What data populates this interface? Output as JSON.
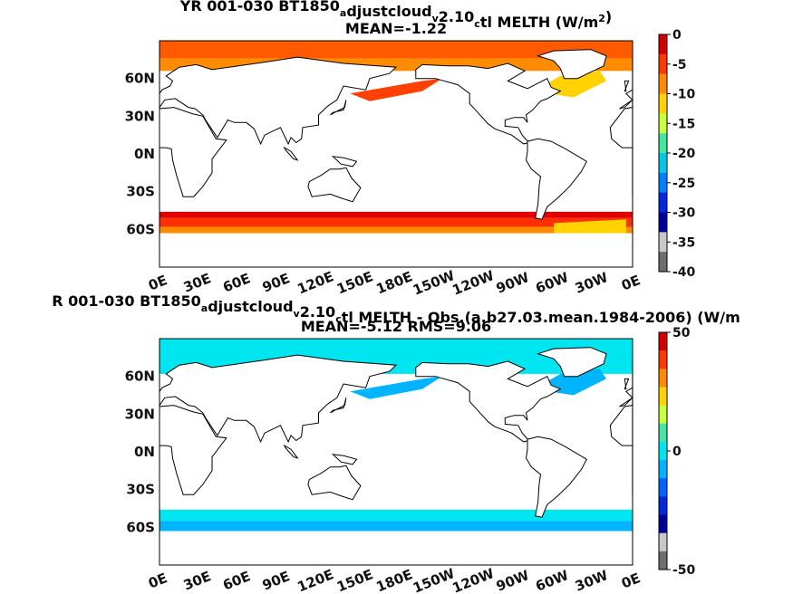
{
  "maps": [
    {
      "title_parts": [
        {
          "t": "YR 001-030 BT1850"
        },
        {
          "t": "a",
          "sub": true
        },
        {
          "t": "djustcloud"
        },
        {
          "t": "v",
          "sub": true
        },
        {
          "t": "2.10"
        },
        {
          "t": "c",
          "sub": true
        },
        {
          "t": "tl  MELTH (W/m"
        },
        {
          "t": "2",
          "sup": true
        },
        {
          "t": ")"
        }
      ],
      "subtitle": "MEAN=-1.22",
      "lat_labels": [
        "60N",
        "30N",
        "0N",
        "30S",
        "60S"
      ],
      "lon_labels": [
        "0E",
        "30E",
        "60E",
        "90E",
        "120E",
        "150E",
        "180E",
        "150W",
        "120W",
        "90W",
        "60W",
        "30W",
        "0E"
      ],
      "colorbar": {
        "tick_labels": [
          "0",
          "-5",
          "-10",
          "-15",
          "-20",
          "-25",
          "-30",
          "-35",
          "-40"
        ],
        "colors": [
          "#d40000",
          "#ff3a00",
          "#ff8c00",
          "#ffd200",
          "#c8ff3c",
          "#46e6a0",
          "#00c8e6",
          "#0080ff",
          "#0028dc",
          "#00009a",
          "#c8c8c8",
          "#6e6e6e"
        ]
      }
    },
    {
      "title_parts": [
        {
          "t": "R 001-030 BT1850"
        },
        {
          "t": "a",
          "sub": true
        },
        {
          "t": "djustcloud"
        },
        {
          "t": "v",
          "sub": true
        },
        {
          "t": "2.10"
        },
        {
          "t": "c",
          "sub": true
        },
        {
          "t": "tl MELTH - Obs.(a.b27.03.mean.1984-2006) (W/m"
        }
      ],
      "subtitle": "MEAN=-5.12 RMS=9.06",
      "lat_labels": [
        "60N",
        "30N",
        "0N",
        "30S",
        "60S"
      ],
      "lon_labels": [
        "0E",
        "30E",
        "60E",
        "90E",
        "120E",
        "150E",
        "180E",
        "150W",
        "120W",
        "90W",
        "60W",
        "30W",
        "0E"
      ],
      "colorbar": {
        "tick_labels": [
          "50",
          "0",
          "-50"
        ],
        "colors": [
          "#d40000",
          "#ff3a00",
          "#ff8c00",
          "#ffd200",
          "#c8ff3c",
          "#46e6a0",
          "#00e6f0",
          "#00b4ff",
          "#0064ff",
          "#0028dc",
          "#00009a",
          "#c8c8c8",
          "#6e6e6e"
        ]
      }
    }
  ]
}
